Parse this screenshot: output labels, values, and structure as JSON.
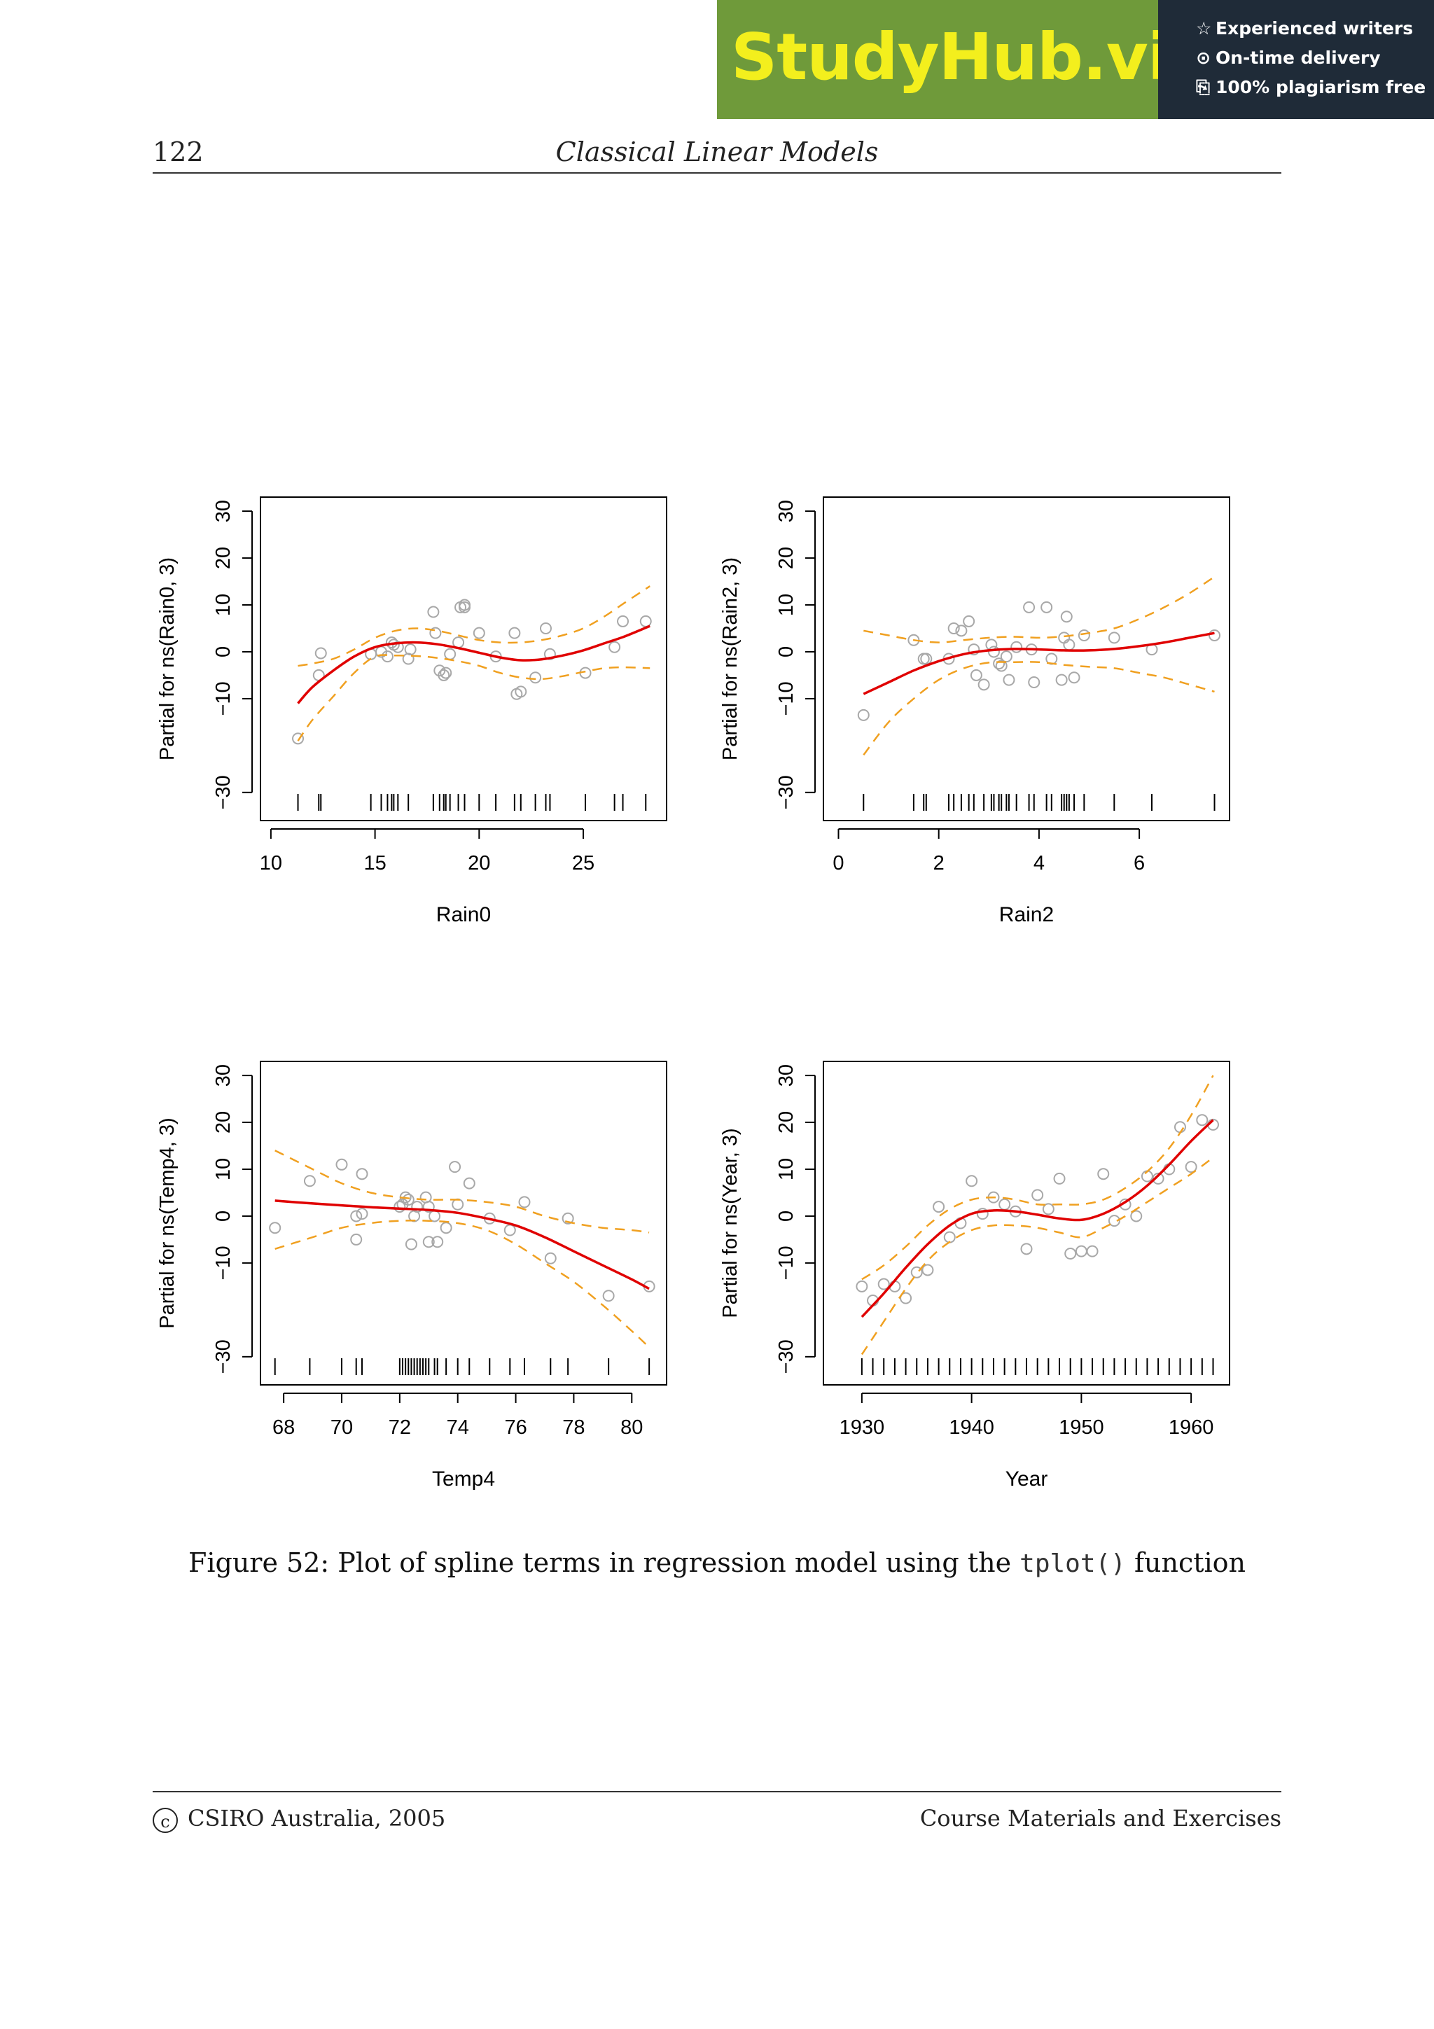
{
  "banner": {
    "logo": "StudyHub.vip",
    "features": [
      "Experienced writers",
      "On-time delivery",
      "100% plagiarism free"
    ]
  },
  "header": {
    "page_number": "122",
    "running_title": "Classical Linear Models"
  },
  "chart_data": [
    {
      "type": "line",
      "xlabel": "Rain0",
      "ylabel": "Partial for ns(Rain0, 3)",
      "xlim": [
        9.5,
        29
      ],
      "ylim": [
        -36,
        33
      ],
      "xticks": [
        10,
        15,
        20,
        25
      ],
      "yticks": [
        -30,
        -10,
        0,
        10,
        20,
        30
      ],
      "grid": false,
      "series": [
        {
          "role": "fit",
          "color": "#e00000",
          "dashed": false,
          "x": [
            11.3,
            12,
            13,
            14,
            15,
            16,
            17,
            18,
            19,
            20,
            21,
            22,
            23,
            24,
            25,
            26,
            27,
            28.2
          ],
          "y": [
            -11,
            -7.5,
            -4,
            -1,
            1,
            1.8,
            2,
            1.6,
            0.8,
            -0.2,
            -1.2,
            -1.8,
            -1.6,
            -0.8,
            0.3,
            1.8,
            3.3,
            5.5
          ]
        },
        {
          "role": "upper",
          "color": "#f0a020",
          "dashed": true,
          "x": [
            11.3,
            12,
            13,
            14,
            15,
            16,
            17,
            18,
            19,
            20,
            21,
            22,
            23,
            24,
            25,
            26,
            27,
            28.2
          ],
          "y": [
            -3,
            -2.5,
            -1.5,
            0.5,
            3,
            4.5,
            5,
            4.5,
            3.5,
            2.5,
            2,
            2,
            2.5,
            3.5,
            5,
            7.5,
            10.5,
            14
          ]
        },
        {
          "role": "lower",
          "color": "#f0a020",
          "dashed": true,
          "x": [
            11.3,
            12,
            13,
            14,
            15,
            16,
            17,
            18,
            19,
            20,
            21,
            22,
            23,
            24,
            25,
            26,
            27,
            28.2
          ],
          "y": [
            -19,
            -14.5,
            -9.5,
            -4.5,
            -1,
            -0.8,
            -0.9,
            -1.3,
            -2,
            -3,
            -4.5,
            -5.5,
            -5.8,
            -5.2,
            -4.3,
            -3.5,
            -3.3,
            -3.5
          ]
        }
      ],
      "points": {
        "x": [
          11.3,
          12.3,
          12.4,
          14.8,
          15.3,
          15.6,
          15.8,
          15.9,
          16.1,
          16.6,
          16.7,
          17.8,
          17.9,
          18.1,
          18.3,
          18.4,
          18.6,
          19.0,
          19.1,
          19.3,
          19.3,
          20.0,
          20.8,
          21.7,
          21.8,
          22.0,
          22.7,
          23.2,
          23.4,
          25.1,
          26.5,
          26.9,
          28.0
        ],
        "y": [
          -18.5,
          -5,
          -0.3,
          -0.5,
          0,
          -1,
          2,
          1.5,
          1,
          -1.5,
          0.5,
          8.5,
          4,
          -4,
          -5,
          -4.5,
          -0.5,
          2,
          9.5,
          10,
          9.5,
          4,
          -1,
          4,
          -9,
          -8.5,
          -5.5,
          5,
          -0.5,
          -4.5,
          1,
          6.5,
          6.5
        ]
      },
      "rug": [
        11.3,
        12.3,
        12.4,
        14.8,
        15.3,
        15.6,
        15.8,
        15.9,
        16.1,
        16.6,
        17.8,
        18.1,
        18.3,
        18.4,
        18.6,
        19.0,
        19.3,
        20.0,
        20.8,
        21.7,
        22.0,
        22.7,
        23.2,
        23.4,
        25.1,
        26.5,
        26.9,
        28.0
      ]
    },
    {
      "type": "line",
      "xlabel": "Rain2",
      "ylabel": "Partial for ns(Rain2, 3)",
      "xlim": [
        -0.3,
        7.8
      ],
      "ylim": [
        -36,
        33
      ],
      "xticks": [
        0,
        2,
        4,
        6
      ],
      "yticks": [
        -30,
        -10,
        0,
        10,
        20,
        30
      ],
      "grid": false,
      "series": [
        {
          "role": "fit",
          "color": "#e00000",
          "dashed": false,
          "x": [
            0.5,
            1,
            1.5,
            2,
            2.5,
            3,
            3.5,
            4,
            4.5,
            5,
            5.5,
            6,
            6.5,
            7,
            7.5
          ],
          "y": [
            -9,
            -6.5,
            -4,
            -2,
            -0.5,
            0.3,
            0.6,
            0.5,
            0.3,
            0.3,
            0.6,
            1.2,
            2,
            3,
            4
          ]
        },
        {
          "role": "upper",
          "color": "#f0a020",
          "dashed": true,
          "x": [
            0.5,
            1,
            1.5,
            2,
            2.5,
            3,
            3.5,
            4,
            4.5,
            5,
            5.5,
            6,
            6.5,
            7,
            7.5
          ],
          "y": [
            4.5,
            3.5,
            2.5,
            2,
            2.5,
            3,
            3.2,
            3,
            3.3,
            4,
            5,
            7,
            9.5,
            12.5,
            16
          ]
        },
        {
          "role": "lower",
          "color": "#f0a020",
          "dashed": true,
          "x": [
            0.5,
            1,
            1.5,
            2,
            2.5,
            3,
            3.5,
            4,
            4.5,
            5,
            5.5,
            6,
            6.5,
            7,
            7.5
          ],
          "y": [
            -22,
            -15,
            -10,
            -6,
            -3.5,
            -2.3,
            -2.2,
            -2.2,
            -2.8,
            -3.2,
            -3.5,
            -4.5,
            -5.5,
            -7,
            -8.5
          ]
        }
      ],
      "points": {
        "x": [
          0.5,
          1.5,
          1.7,
          1.75,
          2.2,
          2.3,
          2.45,
          2.6,
          2.7,
          2.75,
          2.9,
          3.05,
          3.1,
          3.2,
          3.25,
          3.35,
          3.4,
          3.55,
          3.8,
          3.85,
          3.9,
          4.15,
          4.25,
          4.45,
          4.5,
          4.55,
          4.6,
          4.7,
          4.9,
          5.5,
          6.25,
          7.5
        ],
        "y": [
          -13.5,
          2.5,
          -1.5,
          -1.5,
          -1.5,
          5,
          4.5,
          6.5,
          0.5,
          -5,
          -7,
          1.5,
          0,
          -2.5,
          -3,
          -1,
          -6,
          1,
          9.5,
          0.5,
          -6.5,
          9.5,
          -1.5,
          -6,
          3,
          7.5,
          1.5,
          -5.5,
          3.5,
          3,
          0.5,
          3.5
        ]
      },
      "rug": [
        0.5,
        1.5,
        1.7,
        1.75,
        2.2,
        2.3,
        2.45,
        2.6,
        2.7,
        2.9,
        3.05,
        3.1,
        3.2,
        3.25,
        3.35,
        3.4,
        3.55,
        3.8,
        3.9,
        4.15,
        4.25,
        4.45,
        4.5,
        4.55,
        4.6,
        4.7,
        4.9,
        5.5,
        6.25,
        7.5
      ]
    },
    {
      "type": "line",
      "xlabel": "Temp4",
      "ylabel": "Partial for ns(Temp4, 3)",
      "xlim": [
        67.2,
        81.2
      ],
      "ylim": [
        -36,
        33
      ],
      "xticks": [
        68,
        70,
        72,
        74,
        76,
        78,
        80
      ],
      "yticks": [
        -30,
        -10,
        0,
        10,
        20,
        30
      ],
      "grid": false,
      "series": [
        {
          "role": "fit",
          "color": "#e00000",
          "dashed": false,
          "x": [
            67.7,
            69,
            70,
            71,
            72,
            73,
            74,
            75,
            76,
            77,
            78,
            79,
            80,
            80.6
          ],
          "y": [
            3.3,
            2.7,
            2.3,
            1.9,
            1.6,
            1.3,
            0.7,
            -0.5,
            -2,
            -4.5,
            -7.5,
            -10.5,
            -13.5,
            -15.5
          ]
        },
        {
          "role": "upper",
          "color": "#f0a020",
          "dashed": true,
          "x": [
            67.7,
            69,
            70,
            71,
            72,
            73,
            74,
            75,
            76,
            77,
            78,
            79,
            80,
            80.6
          ],
          "y": [
            14,
            10,
            7,
            5,
            4,
            3.5,
            3.5,
            3,
            2,
            0,
            -1.5,
            -2.5,
            -3,
            -3.5
          ]
        },
        {
          "role": "lower",
          "color": "#f0a020",
          "dashed": true,
          "x": [
            67.7,
            69,
            70,
            71,
            72,
            73,
            74,
            75,
            76,
            77,
            78,
            79,
            80,
            80.6
          ],
          "y": [
            -7,
            -4.5,
            -2.5,
            -1.5,
            -1,
            -1,
            -1.5,
            -3,
            -6,
            -10,
            -14,
            -19,
            -24.5,
            -28
          ]
        }
      ],
      "points": {
        "x": [
          67.7,
          68.9,
          70.0,
          70.5,
          70.5,
          70.7,
          70.7,
          72.0,
          72.1,
          72.2,
          72.3,
          72.4,
          72.5,
          72.6,
          72.9,
          73.0,
          73.0,
          73.2,
          73.3,
          73.6,
          73.9,
          74.0,
          74.4,
          75.1,
          75.8,
          76.3,
          77.2,
          77.8,
          79.2,
          80.6
        ],
        "y": [
          -2.5,
          7.5,
          11,
          -5,
          0,
          9,
          0.5,
          2,
          2.5,
          4,
          3.5,
          -6,
          0,
          2,
          4,
          2,
          -5.5,
          0,
          -5.5,
          -2.5,
          10.5,
          2.5,
          7,
          -0.5,
          -3,
          3,
          -9,
          -0.5,
          -17,
          -15
        ]
      },
      "rug": [
        67.7,
        68.9,
        70.0,
        70.5,
        70.7,
        72.0,
        72.1,
        72.2,
        72.3,
        72.4,
        72.5,
        72.6,
        72.7,
        72.8,
        72.9,
        73.0,
        73.2,
        73.3,
        73.6,
        74.0,
        74.4,
        75.1,
        75.8,
        76.3,
        77.2,
        77.8,
        79.2,
        80.6
      ]
    },
    {
      "type": "line",
      "xlabel": "Year",
      "ylabel": "Partial for ns(Year, 3)",
      "xlim": [
        1926.5,
        1963.5
      ],
      "ylim": [
        -36,
        33
      ],
      "xticks": [
        1930,
        1940,
        1950,
        1960
      ],
      "yticks": [
        -30,
        -10,
        0,
        10,
        20,
        30
      ],
      "grid": false,
      "series": [
        {
          "role": "fit",
          "color": "#e00000",
          "dashed": false,
          "x": [
            1930,
            1932,
            1934,
            1936,
            1938,
            1940,
            1942,
            1944,
            1946,
            1948,
            1950,
            1952,
            1954,
            1956,
            1958,
            1960,
            1962
          ],
          "y": [
            -21.5,
            -16.5,
            -11,
            -6,
            -2,
            0.5,
            1.2,
            1,
            0.3,
            -0.5,
            -0.8,
            0.5,
            3,
            6.5,
            11,
            16,
            20.5
          ]
        },
        {
          "role": "upper",
          "color": "#f0a020",
          "dashed": true,
          "x": [
            1930,
            1932,
            1934,
            1936,
            1938,
            1940,
            1942,
            1944,
            1946,
            1948,
            1950,
            1952,
            1954,
            1956,
            1958,
            1960,
            1962
          ],
          "y": [
            -13.5,
            -10.5,
            -6.5,
            -2,
            1.5,
            3.5,
            4,
            3.5,
            2.5,
            2.5,
            2.5,
            3.5,
            6,
            9.5,
            14.5,
            21.5,
            30
          ]
        },
        {
          "role": "lower",
          "color": "#f0a020",
          "dashed": true,
          "x": [
            1930,
            1932,
            1934,
            1936,
            1938,
            1940,
            1942,
            1944,
            1946,
            1948,
            1950,
            1952,
            1954,
            1956,
            1958,
            1960,
            1962
          ],
          "y": [
            -29.5,
            -22.5,
            -15.5,
            -9.5,
            -5.5,
            -3,
            -2,
            -2,
            -2.5,
            -3.5,
            -4.5,
            -2.5,
            0,
            3,
            6,
            9,
            12.5
          ]
        }
      ],
      "points": {
        "x": [
          1930,
          1931,
          1932,
          1933,
          1934,
          1935,
          1936,
          1937,
          1938,
          1939,
          1940,
          1941,
          1942,
          1943,
          1944,
          1945,
          1946,
          1947,
          1948,
          1949,
          1950,
          1951,
          1952,
          1953,
          1954,
          1955,
          1956,
          1957,
          1958,
          1959,
          1960,
          1961,
          1962
        ],
        "y": [
          -15,
          -18,
          -14.5,
          -15,
          -17.5,
          -12,
          -11.5,
          2,
          -4.5,
          -1.5,
          7.5,
          0.5,
          4,
          2.5,
          1,
          -7,
          4.5,
          1.5,
          8,
          -8,
          -7.5,
          -7.5,
          9,
          -1,
          2.5,
          0,
          8.5,
          8,
          10,
          19,
          10.5,
          20.5,
          19.5
        ]
      },
      "rug": [
        1930,
        1931,
        1932,
        1933,
        1934,
        1935,
        1936,
        1937,
        1938,
        1939,
        1940,
        1941,
        1942,
        1943,
        1944,
        1945,
        1946,
        1947,
        1948,
        1949,
        1950,
        1951,
        1952,
        1953,
        1954,
        1955,
        1956,
        1957,
        1958,
        1959,
        1960,
        1961,
        1962
      ]
    }
  ],
  "caption": {
    "text_before": "Figure 52: Plot of spline terms in regression model using the ",
    "code": "tplot()",
    "text_after": " function"
  },
  "footer": {
    "copyright_symbol": "c",
    "left": "CSIRO Australia, 2005",
    "right": "Course Materials and Exercises"
  }
}
